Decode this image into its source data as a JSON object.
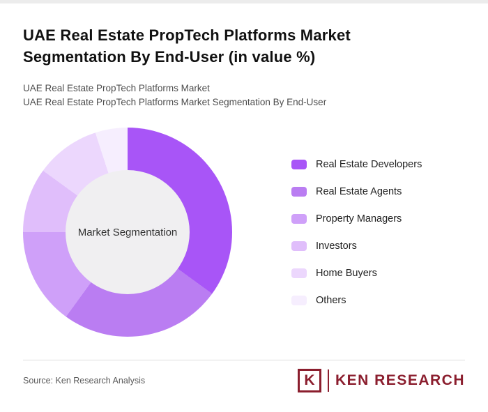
{
  "header": {
    "title": "UAE Real Estate PropTech Platforms Market Segmentation By End-User (in value %)",
    "subtitle1": "UAE Real Estate PropTech Platforms Market",
    "subtitle2": "UAE Real Estate PropTech Platforms Market Segmentation By End-User"
  },
  "chart_data": {
    "type": "pie",
    "donut": true,
    "title": "UAE Real Estate PropTech Platforms Market Segmentation By End-User (in value %)",
    "center_label": "Market Segmentation",
    "legend_position": "right",
    "start_angle_deg": 0,
    "direction": "clockwise",
    "categories": [
      "Real Estate Developers",
      "Real Estate Agents",
      "Property Managers",
      "Investors",
      "Home Buyers",
      "Others"
    ],
    "values": [
      35,
      25,
      15,
      10,
      10,
      5
    ],
    "colors": [
      "#a855f7",
      "#ba7df2",
      "#cfa0f9",
      "#e0befb",
      "#ecd7fd",
      "#f6eefe"
    ],
    "hole_color": "#f0eff1"
  },
  "footer": {
    "source": "Source: Ken Research Analysis",
    "logo": {
      "mark": "K",
      "text": "KEN RESEARCH",
      "color": "#8b1e2e"
    }
  }
}
